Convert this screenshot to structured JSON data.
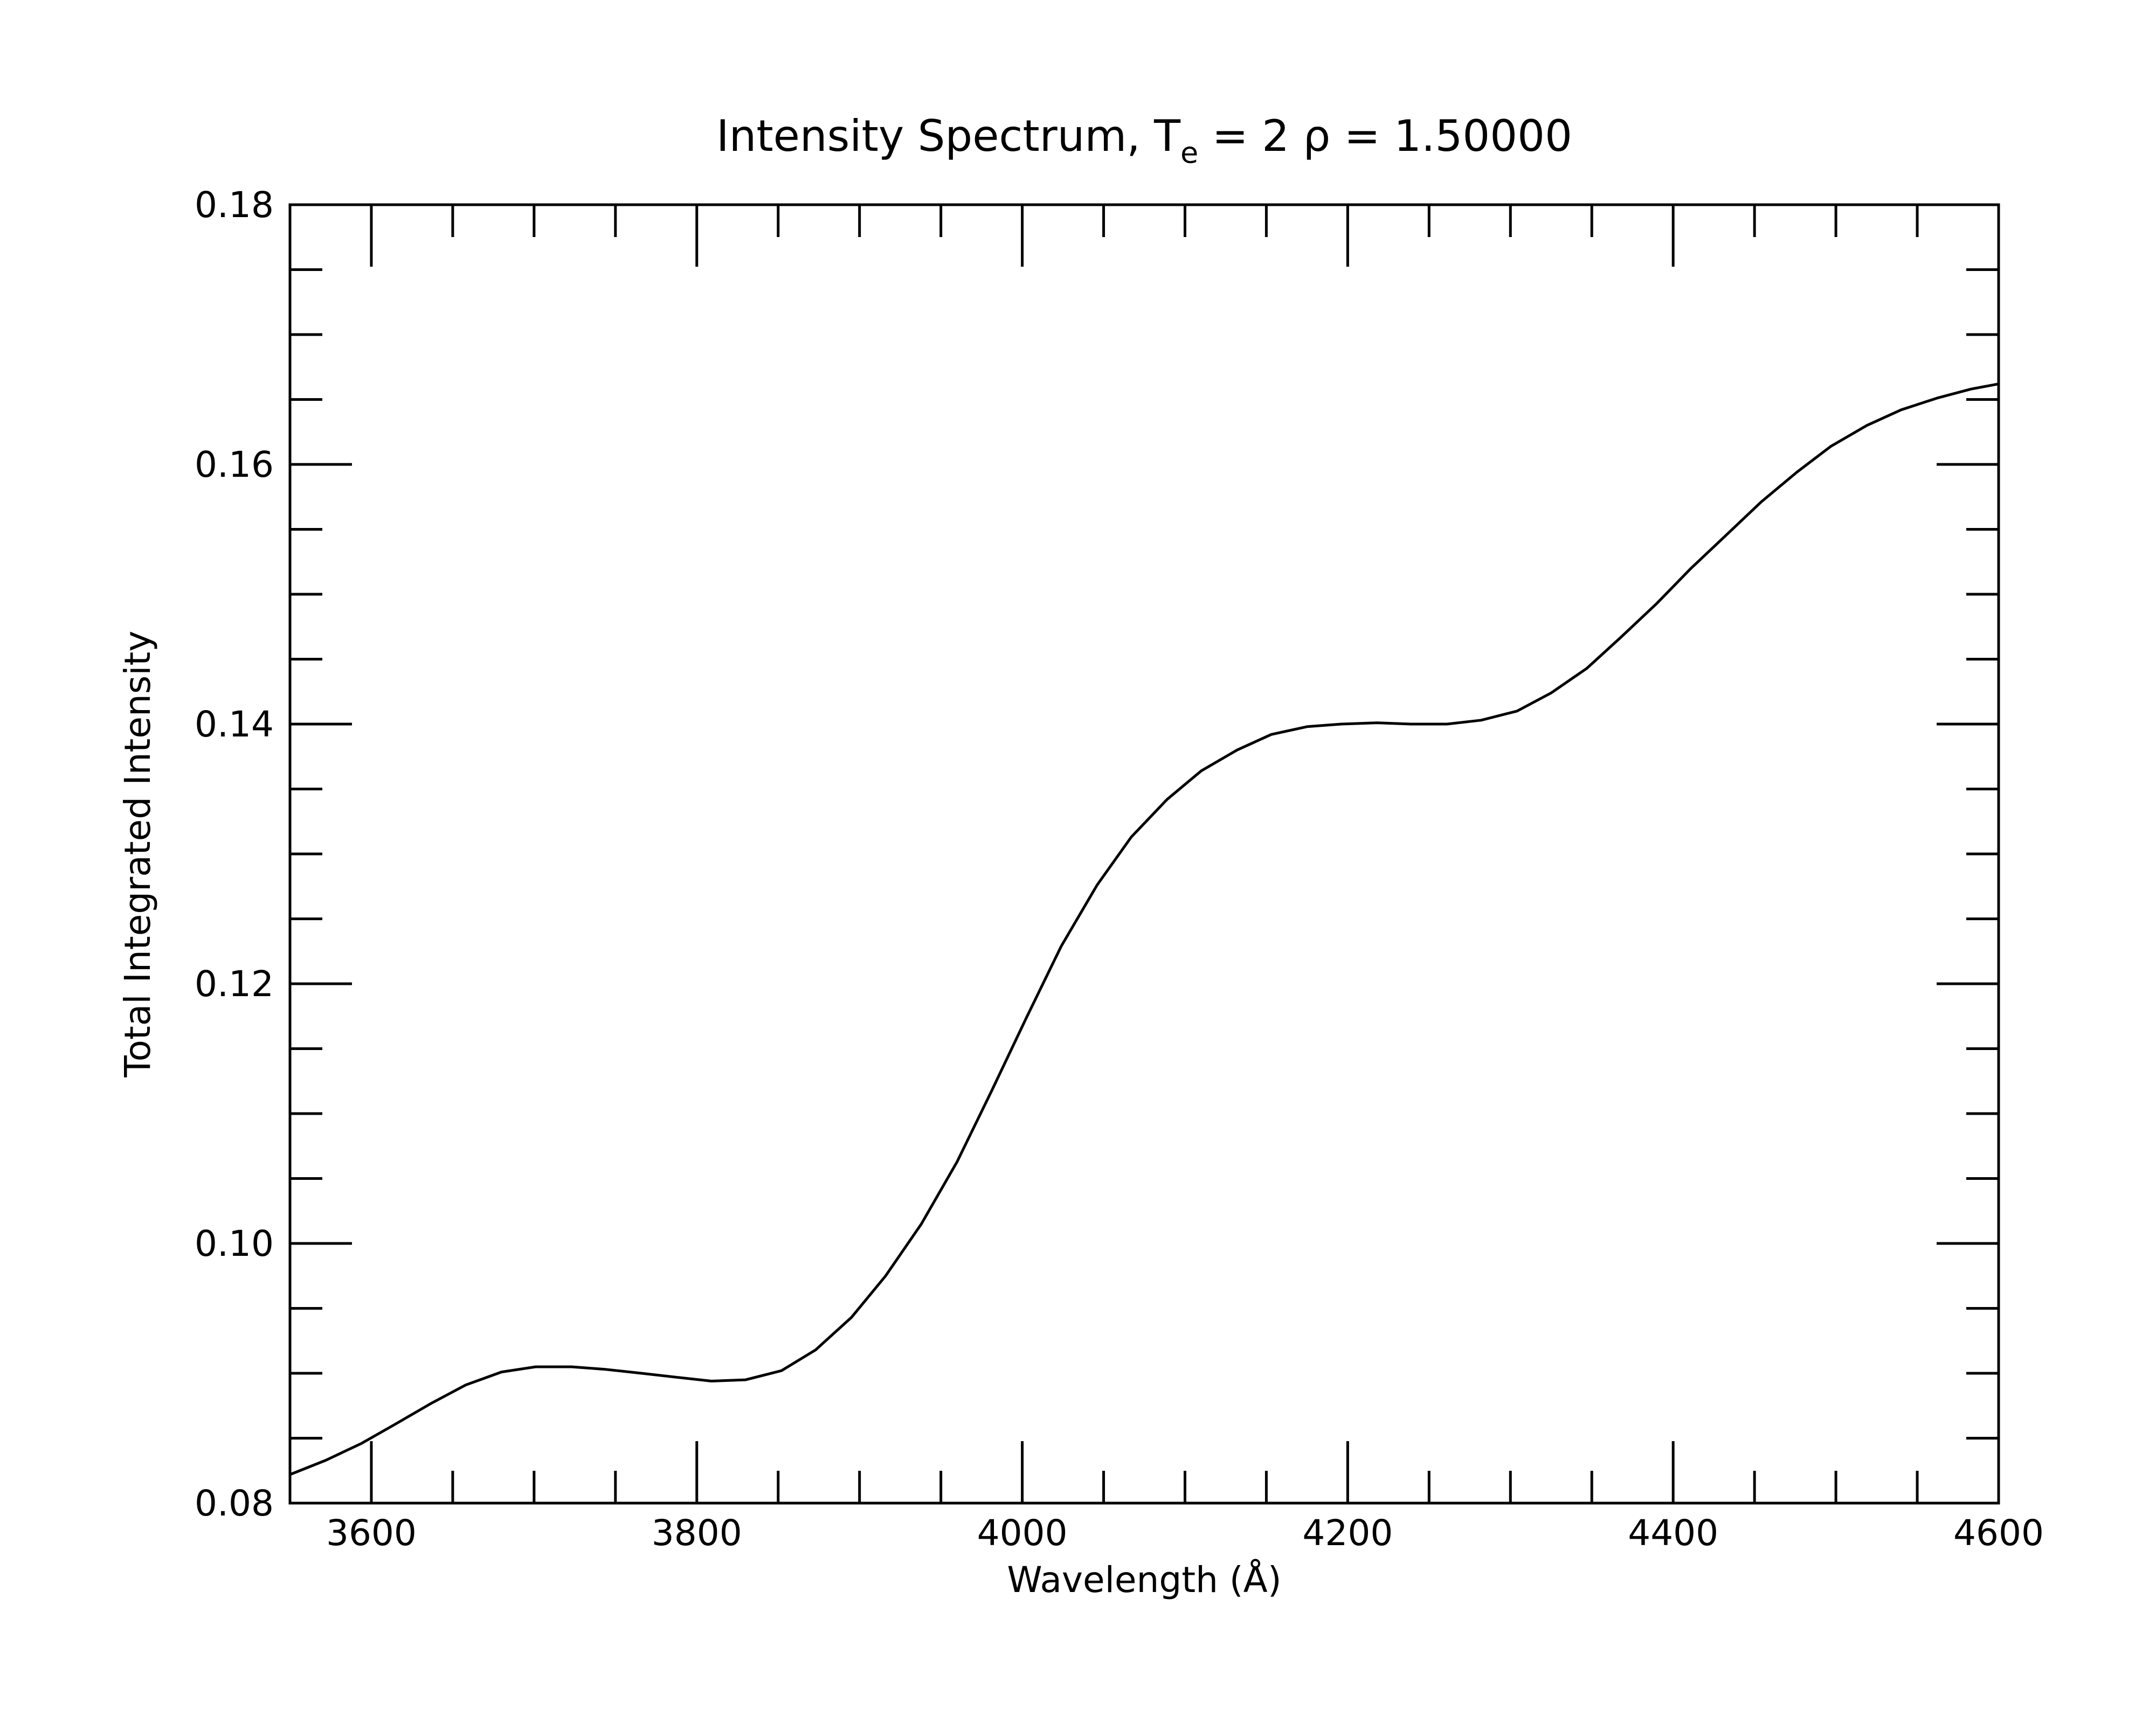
{
  "chart_data": {
    "type": "line",
    "title": {
      "prefix": "Intensity Spectrum, T",
      "subscript": "e",
      "suffix": " = 2 ρ = 1.50000"
    },
    "xlabel": "Wavelength (Å)",
    "ylabel": "Total Integrated Intensity",
    "xlim": [
      3550,
      4600
    ],
    "ylim": [
      0.08,
      0.18
    ],
    "x_ticks": [
      3600,
      3800,
      4000,
      4200,
      4400,
      4600
    ],
    "x_tick_labels": [
      "3600",
      "3800",
      "4000",
      "4200",
      "4400",
      "4600"
    ],
    "y_ticks": [
      0.08,
      0.1,
      0.12,
      0.14,
      0.16,
      0.18
    ],
    "y_tick_labels": [
      "0.08",
      "0.10",
      "0.12",
      "0.14",
      "0.16",
      "0.18"
    ],
    "x_minor_step": 50,
    "y_minor_step": 0.005,
    "grid": false,
    "series": [
      {
        "color": "#000000",
        "x": [
          3550,
          3572,
          3594,
          3615,
          3637,
          3658,
          3680,
          3701,
          3723,
          3744,
          3766,
          3787,
          3809,
          3830,
          3852,
          3873,
          3895,
          3916,
          3938,
          3960,
          3981,
          4003,
          4024,
          4046,
          4067,
          4089,
          4110,
          4132,
          4153,
          4175,
          4196,
          4218,
          4239,
          4261,
          4282,
          4304,
          4325,
          4347,
          4368,
          4390,
          4411,
          4433,
          4454,
          4476,
          4497,
          4519,
          4540,
          4562,
          4583,
          4600
        ],
        "y": [
          0.0822,
          0.0833,
          0.0846,
          0.0861,
          0.0877,
          0.0891,
          0.0901,
          0.0905,
          0.0905,
          0.0903,
          0.09,
          0.0897,
          0.0894,
          0.0895,
          0.0902,
          0.0918,
          0.0943,
          0.0975,
          0.1015,
          0.1063,
          0.1117,
          0.1175,
          0.1229,
          0.1276,
          0.1313,
          0.1342,
          0.1364,
          0.138,
          0.1392,
          0.1398,
          0.14,
          0.1401,
          0.14,
          0.14,
          0.1403,
          0.141,
          0.1424,
          0.1443,
          0.1467,
          0.1493,
          0.152,
          0.1546,
          0.1571,
          0.1594,
          0.1614,
          0.163,
          0.1642,
          0.1651,
          0.1658,
          0.1662
        ]
      }
    ]
  }
}
